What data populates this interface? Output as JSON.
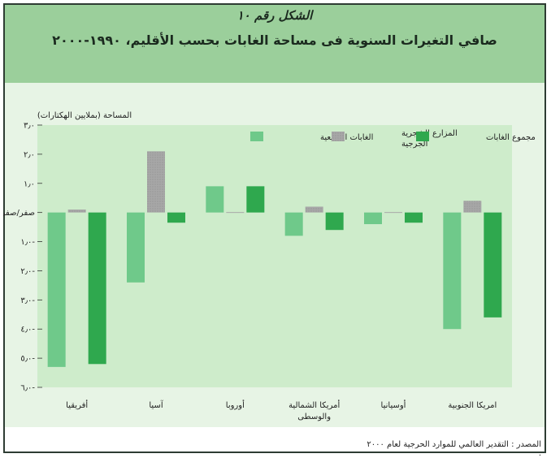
{
  "figure": {
    "number_title": "الشكل رقم ١٠",
    "title": "صافي التغيرات السنوية فى مساحة الغابات بحسب الأقليم، ١٩٩٠-٢٠٠٠",
    "source": "المصدر : التقدير العالمي للموارد الحرجية لعام ٢٠٠٠ ."
  },
  "colors": {
    "header_band": "#9bcf9b",
    "plot_background": "#ceeccb",
    "natural_forest": "#6fc98a",
    "plantations": "#a7a7a7",
    "total_forest": "#2fa84e"
  },
  "chart_data": {
    "type": "bar",
    "ylabel": "المساحة (بملايين الهكتارات)",
    "ylim": [
      -6,
      3
    ],
    "yticks": [
      3,
      2,
      1,
      0,
      -1,
      -2,
      -3,
      -4,
      -5,
      -6
    ],
    "ytick_labels": [
      "٣٫٠",
      "٢٫٠",
      "١٫٠",
      "صفر/صفر",
      "١٫٠-",
      "٢٫٠-",
      "٣٫٠-",
      "٤٫٠-",
      "٥٫٠-",
      "٦٫٠-"
    ],
    "categories": [
      "أفريقيا",
      "آسيا",
      "أوروبا",
      "أمريكا الشمالية والوسطى",
      "أوسيانيا",
      "امريكا الجنوبية"
    ],
    "category_lines": [
      [
        "أفريقيا"
      ],
      [
        "آسيا"
      ],
      [
        "أوروبا"
      ],
      [
        "أمريكا الشمالية",
        "والوسطى"
      ],
      [
        "أوسيانيا"
      ],
      [
        "امريكا الجنوبية"
      ]
    ],
    "series": [
      {
        "name": "الغابات الطبيعية",
        "values": [
          -5.3,
          -2.4,
          0.9,
          -0.8,
          -0.4,
          -4.0
        ]
      },
      {
        "name": "المزارع الشجرية الجرجية",
        "name_lines": [
          "المزارع الشجرية",
          "الجرجية"
        ],
        "values": [
          0.1,
          2.1,
          0.0,
          0.2,
          0.0,
          0.4
        ]
      },
      {
        "name": "مجموع الغابات",
        "values": [
          -5.2,
          -0.35,
          0.9,
          -0.6,
          -0.35,
          -3.6
        ]
      }
    ],
    "legend_position": "top-right",
    "grid": false
  }
}
